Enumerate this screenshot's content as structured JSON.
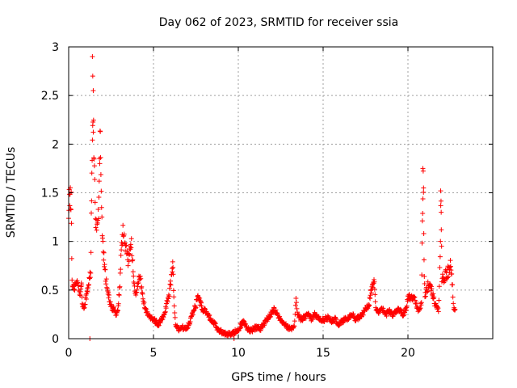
{
  "chart_data": {
    "type": "scatter",
    "title": "Day 062 of 2023, SRMTID for receiver ssia",
    "xlabel": "GPS time / hours",
    "ylabel": "SRMTID / TECUs",
    "xlim": [
      0,
      25
    ],
    "ylim": [
      0,
      3
    ],
    "xticks": [
      0,
      5,
      10,
      15,
      20
    ],
    "xtick_labels": [
      "0",
      "5",
      "10",
      "15",
      "20"
    ],
    "yticks": [
      0,
      0.5,
      1,
      1.5,
      2,
      2.5,
      3
    ],
    "ytick_labels": [
      "0",
      "0.5",
      "1",
      "1.5",
      "2",
      "2.5",
      "3"
    ],
    "grid": true,
    "marker": "+",
    "series": [
      {
        "name": "SRMTID",
        "color": "#ff0000",
        "keypoints": [
          [
            0.0,
            1.35
          ],
          [
            0.05,
            1.5
          ],
          [
            0.1,
            1.45
          ],
          [
            0.15,
            1.4
          ],
          [
            0.2,
            0.6
          ],
          [
            0.3,
            0.5
          ],
          [
            0.4,
            0.55
          ],
          [
            0.5,
            0.58
          ],
          [
            0.6,
            0.5
          ],
          [
            0.7,
            0.45
          ],
          [
            0.75,
            0.6
          ],
          [
            0.8,
            0.35
          ],
          [
            0.9,
            0.3
          ],
          [
            1.0,
            0.4
          ],
          [
            1.1,
            0.5
          ],
          [
            1.3,
            0.7
          ],
          [
            1.35,
            1.5
          ],
          [
            1.4,
            2.0
          ],
          [
            1.45,
            2.3
          ],
          [
            1.5,
            1.8
          ],
          [
            1.6,
            1.2
          ],
          [
            1.7,
            1.1
          ],
          [
            1.8,
            1.5
          ],
          [
            1.85,
            2.15
          ],
          [
            1.9,
            1.6
          ],
          [
            2.0,
            1.0
          ],
          [
            2.1,
            0.8
          ],
          [
            2.2,
            0.6
          ],
          [
            2.3,
            0.5
          ],
          [
            2.4,
            0.4
          ],
          [
            2.5,
            0.35
          ],
          [
            2.6,
            0.3
          ],
          [
            2.7,
            0.3
          ],
          [
            2.8,
            0.25
          ],
          [
            2.9,
            0.3
          ],
          [
            3.0,
            0.5
          ],
          [
            3.1,
            0.9
          ],
          [
            3.2,
            1.1
          ],
          [
            3.3,
            1.0
          ],
          [
            3.4,
            0.9
          ],
          [
            3.5,
            0.8
          ],
          [
            3.6,
            0.9
          ],
          [
            3.7,
            1.0
          ],
          [
            3.8,
            0.7
          ],
          [
            3.9,
            0.5
          ],
          [
            4.0,
            0.45
          ],
          [
            4.1,
            0.6
          ],
          [
            4.2,
            0.65
          ],
          [
            4.3,
            0.5
          ],
          [
            4.4,
            0.4
          ],
          [
            4.5,
            0.3
          ],
          [
            4.7,
            0.25
          ],
          [
            4.9,
            0.2
          ],
          [
            5.1,
            0.18
          ],
          [
            5.3,
            0.15
          ],
          [
            5.5,
            0.2
          ],
          [
            5.7,
            0.3
          ],
          [
            5.9,
            0.45
          ],
          [
            6.0,
            0.55
          ],
          [
            6.1,
            0.7
          ],
          [
            6.15,
            0.75
          ],
          [
            6.2,
            0.4
          ],
          [
            6.3,
            0.15
          ],
          [
            6.5,
            0.1
          ],
          [
            6.7,
            0.12
          ],
          [
            6.9,
            0.1
          ],
          [
            7.1,
            0.15
          ],
          [
            7.3,
            0.25
          ],
          [
            7.5,
            0.35
          ],
          [
            7.6,
            0.45
          ],
          [
            7.7,
            0.4
          ],
          [
            7.9,
            0.3
          ],
          [
            8.1,
            0.28
          ],
          [
            8.3,
            0.22
          ],
          [
            8.5,
            0.18
          ],
          [
            8.7,
            0.12
          ],
          [
            8.9,
            0.08
          ],
          [
            9.1,
            0.06
          ],
          [
            9.3,
            0.05
          ],
          [
            9.6,
            0.05
          ],
          [
            9.9,
            0.08
          ],
          [
            10.1,
            0.12
          ],
          [
            10.3,
            0.18
          ],
          [
            10.5,
            0.1
          ],
          [
            10.7,
            0.08
          ],
          [
            10.9,
            0.1
          ],
          [
            11.1,
            0.12
          ],
          [
            11.3,
            0.1
          ],
          [
            11.5,
            0.15
          ],
          [
            11.7,
            0.2
          ],
          [
            11.9,
            0.25
          ],
          [
            12.1,
            0.3
          ],
          [
            12.3,
            0.25
          ],
          [
            12.5,
            0.2
          ],
          [
            12.7,
            0.15
          ],
          [
            12.9,
            0.12
          ],
          [
            13.1,
            0.1
          ],
          [
            13.3,
            0.12
          ],
          [
            13.4,
            0.42
          ],
          [
            13.5,
            0.25
          ],
          [
            13.7,
            0.2
          ],
          [
            13.9,
            0.22
          ],
          [
            14.1,
            0.25
          ],
          [
            14.3,
            0.2
          ],
          [
            14.5,
            0.25
          ],
          [
            14.7,
            0.22
          ],
          [
            14.9,
            0.18
          ],
          [
            15.1,
            0.2
          ],
          [
            15.3,
            0.22
          ],
          [
            15.5,
            0.18
          ],
          [
            15.7,
            0.2
          ],
          [
            15.9,
            0.15
          ],
          [
            16.1,
            0.18
          ],
          [
            16.3,
            0.2
          ],
          [
            16.5,
            0.22
          ],
          [
            16.7,
            0.25
          ],
          [
            16.9,
            0.2
          ],
          [
            17.1,
            0.22
          ],
          [
            17.3,
            0.25
          ],
          [
            17.5,
            0.3
          ],
          [
            17.7,
            0.35
          ],
          [
            17.9,
            0.55
          ],
          [
            18.0,
            0.6
          ],
          [
            18.1,
            0.3
          ],
          [
            18.3,
            0.28
          ],
          [
            18.5,
            0.3
          ],
          [
            18.7,
            0.25
          ],
          [
            18.9,
            0.28
          ],
          [
            19.1,
            0.25
          ],
          [
            19.3,
            0.28
          ],
          [
            19.5,
            0.3
          ],
          [
            19.7,
            0.25
          ],
          [
            19.9,
            0.3
          ],
          [
            20.0,
            0.45
          ],
          [
            20.2,
            0.42
          ],
          [
            20.4,
            0.4
          ],
          [
            20.6,
            0.3
          ],
          [
            20.8,
            0.35
          ],
          [
            20.85,
            1.2
          ],
          [
            20.9,
            1.7
          ],
          [
            20.95,
            0.8
          ],
          [
            21.0,
            0.45
          ],
          [
            21.2,
            0.55
          ],
          [
            21.4,
            0.5
          ],
          [
            21.6,
            0.35
          ],
          [
            21.8,
            0.3
          ],
          [
            21.9,
            0.8
          ],
          [
            21.95,
            1.5
          ],
          [
            22.0,
            0.6
          ],
          [
            22.2,
            0.65
          ],
          [
            22.4,
            0.7
          ],
          [
            22.5,
            0.75
          ],
          [
            22.6,
            0.6
          ],
          [
            22.7,
            0.3
          ],
          [
            22.8,
            0.28
          ]
        ]
      }
    ],
    "outliers": [
      [
        1.25,
        0.0
      ],
      [
        9.75,
        0.0
      ]
    ],
    "spikes": [
      [
        1.4,
        2.9
      ],
      [
        1.42,
        2.7
      ],
      [
        1.45,
        2.55
      ],
      [
        20.88,
        1.75
      ],
      [
        20.92,
        1.55
      ],
      [
        21.93,
        1.52
      ],
      [
        21.96,
        1.3
      ]
    ]
  }
}
